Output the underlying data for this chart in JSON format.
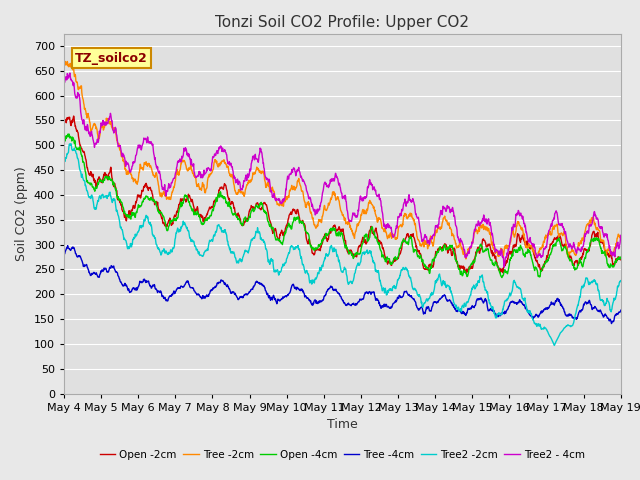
{
  "title": "Tonzi Soil CO2 Profile: Upper CO2",
  "xlabel": "Time",
  "ylabel": "Soil CO2 (ppm)",
  "ylim": [
    0,
    725
  ],
  "yticks": [
    0,
    50,
    100,
    150,
    200,
    250,
    300,
    350,
    400,
    450,
    500,
    550,
    600,
    650,
    700
  ],
  "x_start": 0,
  "x_end": 15,
  "num_points": 1500,
  "xtick_labels": [
    "May 4",
    "May 5",
    "May 6",
    "May 7",
    "May 8",
    "May 9",
    "May 10",
    "May 11",
    "May 12",
    "May 13",
    "May 14",
    "May 15",
    "May 16",
    "May 17",
    "May 18",
    "May 19"
  ],
  "xtick_positions": [
    0,
    1,
    2,
    3,
    4,
    5,
    6,
    7,
    8,
    9,
    10,
    11,
    12,
    13,
    14,
    15
  ],
  "legend_label_box": "TZ_soilco2",
  "series": [
    {
      "label": "Open -2cm",
      "color": "#cc0000",
      "lw": 1.0
    },
    {
      "label": "Tree -2cm",
      "color": "#ff8800",
      "lw": 1.0
    },
    {
      "label": "Open -4cm",
      "color": "#00cc00",
      "lw": 1.0
    },
    {
      "label": "Tree -4cm",
      "color": "#0000cc",
      "lw": 1.0
    },
    {
      "label": "Tree2 -2cm",
      "color": "#00cccc",
      "lw": 1.0
    },
    {
      "label": "Tree2 - 4cm",
      "color": "#cc00cc",
      "lw": 1.0
    }
  ],
  "fig_bg_color": "#e8e8e8",
  "plot_bg_color": "#e0e0e0",
  "grid_color": "#ffffff",
  "title_fontsize": 11,
  "axis_label_fontsize": 9,
  "tick_fontsize": 8
}
